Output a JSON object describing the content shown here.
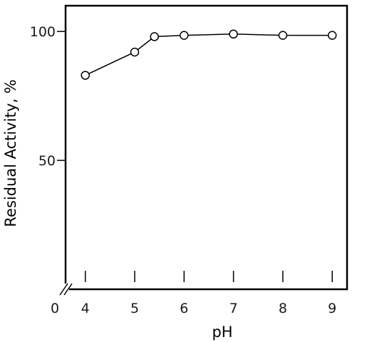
{
  "chart_data": {
    "type": "line",
    "title": "",
    "xlabel": "pH",
    "ylabel": "Residual Activity, %",
    "origin_label": "0",
    "xlim": [
      3.6,
      9.3
    ],
    "ylim": [
      0,
      110
    ],
    "x_ticks": [
      4,
      5,
      6,
      7,
      8,
      9
    ],
    "x_tick_labels": [
      "4",
      "5",
      "6",
      "7",
      "8",
      "9"
    ],
    "y_ticks": [
      50,
      100
    ],
    "y_tick_labels": [
      "50",
      "100"
    ],
    "x_axis_break": true,
    "grid": false,
    "legend": "none",
    "series": [
      {
        "marker": "open-circle",
        "x": [
          4,
          5,
          5.4,
          6,
          7,
          8,
          9
        ],
        "y": [
          83,
          92,
          98,
          98.5,
          99,
          98.5,
          98.5
        ]
      }
    ]
  }
}
